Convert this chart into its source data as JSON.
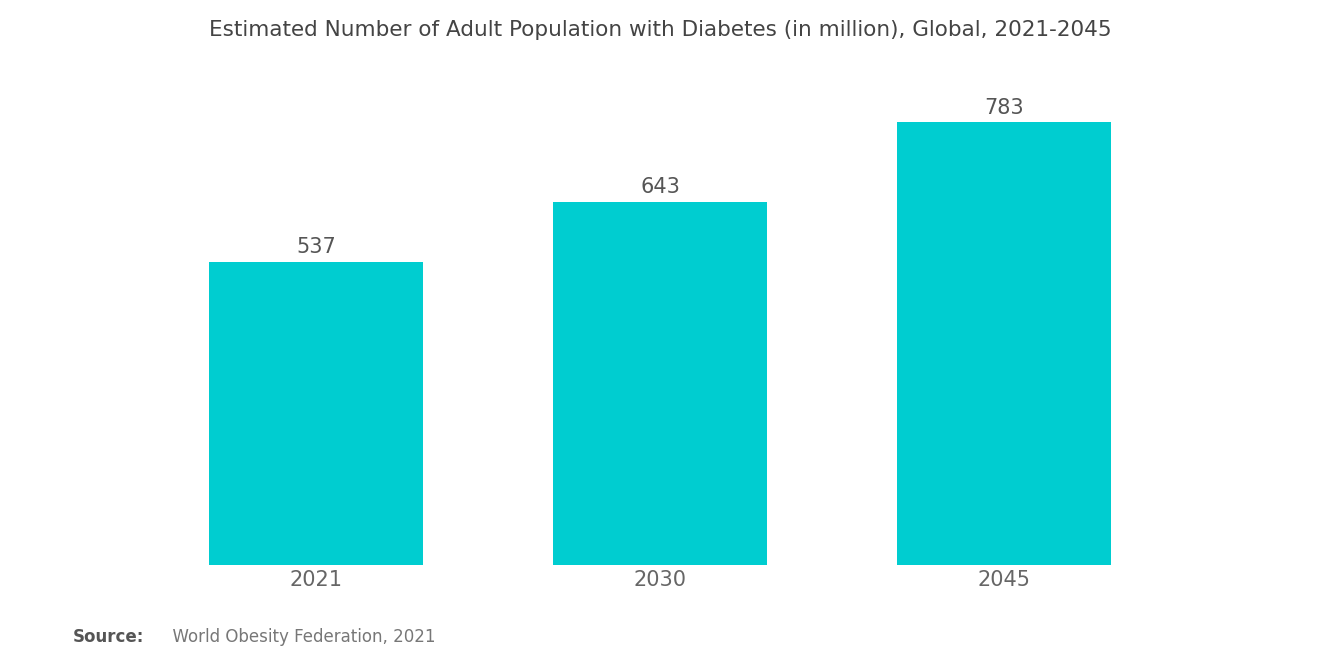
{
  "title": "Estimated Number of Adult Population with Diabetes (in million), Global, 2021-2045",
  "categories": [
    "2021",
    "2030",
    "2045"
  ],
  "values": [
    537,
    643,
    783
  ],
  "bar_color": "#00CDD0",
  "background_color": "#ffffff",
  "title_fontsize": 15.5,
  "label_fontsize": 15,
  "value_fontsize": 15,
  "source_bold": "Source:",
  "source_normal": "  World Obesity Federation, 2021",
  "bar_width": 0.62,
  "ylim": [
    0,
    870
  ],
  "title_color": "#444444",
  "label_color": "#666666",
  "value_color": "#555555"
}
